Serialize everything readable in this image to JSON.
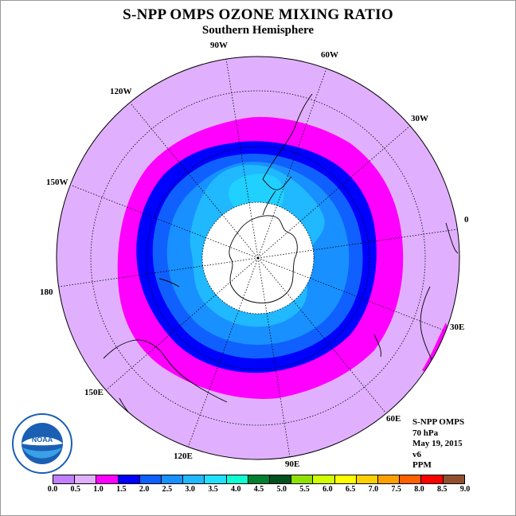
{
  "title": "S-NPP OMPS OZONE MIXING RATIO",
  "subtitle": "Southern Hemisphere",
  "lon_labels": [
    "90W",
    "60W",
    "30W",
    "0",
    "30E",
    "60E",
    "90E",
    "120E",
    "150E",
    "180",
    "150W",
    "120W"
  ],
  "info": {
    "instrument": "S-NPP OMPS",
    "level": "70 hPa",
    "date": "May 19, 2015",
    "version": "v6",
    "units": "PPM"
  },
  "logo_text": "NOAA",
  "colorbar": {
    "ticks": [
      "0.0",
      "0.5",
      "1.0",
      "1.5",
      "2.0",
      "2.5",
      "3.0",
      "3.5",
      "4.0",
      "4.5",
      "5.0",
      "5.5",
      "6.0",
      "6.5",
      "7.0",
      "7.5",
      "8.0",
      "8.5",
      "9.0"
    ],
    "colors": [
      "#c080ff",
      "#e0b0ff",
      "#ff00ff",
      "#0000ff",
      "#1060ff",
      "#1890ff",
      "#20b8ff",
      "#20e0ff",
      "#10ffd0",
      "#008030",
      "#005020",
      "#90e000",
      "#d0ff00",
      "#ffff00",
      "#ffd000",
      "#ffa000",
      "#ff6000",
      "#ff0000",
      "#905030"
    ]
  },
  "colors": {
    "outer": "#e0b0ff",
    "magenta": "#ff00ff",
    "blue": "#0000ff",
    "mid_blue": "#1060ff",
    "light_blue": "#1890ff",
    "sky_blue": "#20b8ff",
    "cyan": "#20d0ff",
    "no_data": "#ffffff"
  }
}
